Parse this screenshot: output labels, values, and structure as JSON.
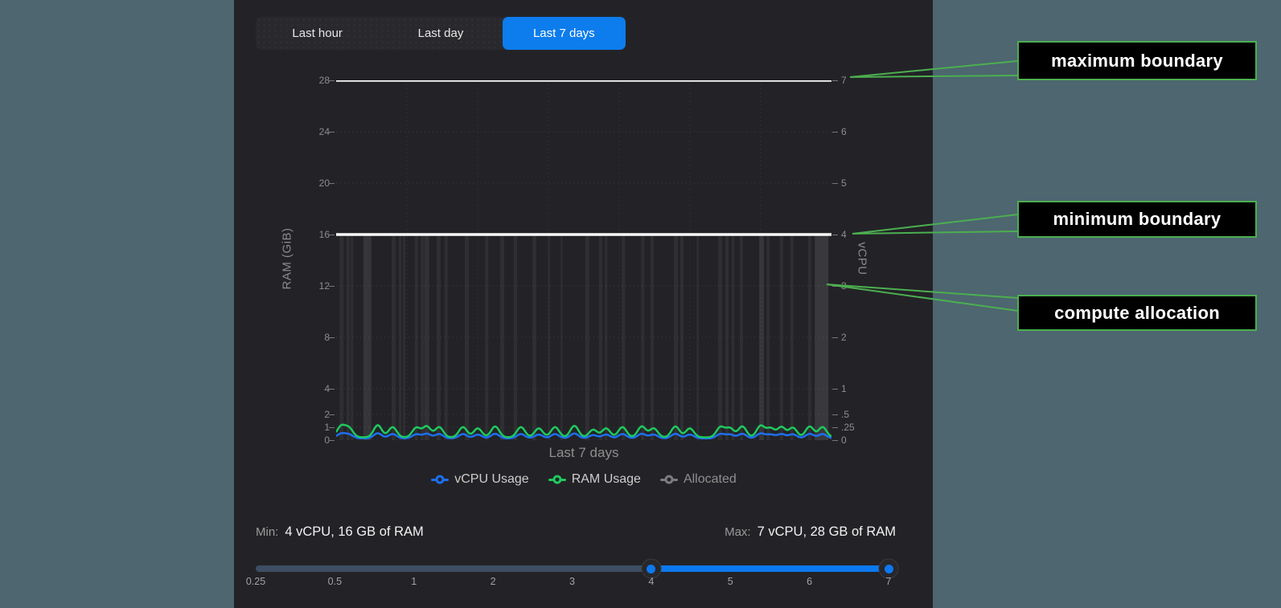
{
  "tabs": {
    "items": [
      {
        "label": "Last hour",
        "active": false
      },
      {
        "label": "Last day",
        "active": false
      },
      {
        "label": "Last 7 days",
        "active": true
      }
    ]
  },
  "chart_data": {
    "type": "line",
    "x_label": "Last 7 days",
    "y_left": {
      "label": "RAM (GiB)",
      "range": [
        0,
        28
      ],
      "ticks": [
        28,
        24,
        20,
        16,
        12,
        8,
        4,
        2,
        1,
        0
      ],
      "tick_labels": [
        "28",
        "24",
        "20",
        "16",
        "12",
        "8",
        "4",
        "2",
        "1",
        "0"
      ]
    },
    "y_right": {
      "label": "vCPU",
      "range": [
        0,
        7
      ],
      "ticks": [
        7,
        6,
        5,
        4,
        3,
        2,
        1,
        0.5,
        0.25,
        0
      ],
      "tick_labels": [
        "7",
        "6",
        "5",
        "4",
        "3",
        "2",
        "1",
        ".5",
        ".25",
        "0"
      ]
    },
    "boundaries": {
      "maximum": {
        "ram_gib": 28,
        "vcpu": 7
      },
      "minimum": {
        "ram_gib": 16,
        "vcpu": 4
      }
    },
    "series": [
      {
        "name": "vCPU Usage",
        "color": "#1e6ff0",
        "axis": "right",
        "baseline_vcpu": 0.035
      },
      {
        "name": "RAM Usage",
        "color": "#1fc95e",
        "axis": "left",
        "baseline_gib": 0.22
      },
      {
        "name": "Allocated",
        "color": "#ffffff",
        "type": "bar",
        "bar_top_gib": 16
      }
    ],
    "ram_bumps": [
      [
        0.01,
        0.85
      ],
      [
        0.026,
        0.7
      ],
      [
        0.084,
        0.95
      ],
      [
        0.114,
        0.8
      ],
      [
        0.162,
        0.75
      ],
      [
        0.183,
        0.85
      ],
      [
        0.208,
        0.8
      ],
      [
        0.256,
        0.8
      ],
      [
        0.286,
        0.7
      ],
      [
        0.321,
        0.85
      ],
      [
        0.373,
        0.8
      ],
      [
        0.409,
        0.7
      ],
      [
        0.442,
        0.8
      ],
      [
        0.481,
        0.9
      ],
      [
        0.519,
        0.6
      ],
      [
        0.545,
        0.7
      ],
      [
        0.578,
        0.8
      ],
      [
        0.617,
        0.85
      ],
      [
        0.641,
        0.7
      ],
      [
        0.685,
        0.85
      ],
      [
        0.714,
        0.7
      ],
      [
        0.776,
        0.8
      ],
      [
        0.795,
        0.7
      ],
      [
        0.82,
        0.85
      ],
      [
        0.857,
        0.9
      ],
      [
        0.877,
        0.7
      ],
      [
        0.899,
        0.8
      ],
      [
        0.922,
        0.75
      ],
      [
        0.956,
        0.85
      ],
      [
        0.982,
        0.8
      ]
    ],
    "allocated_bars": [
      [
        0.011,
        5,
        0.055
      ],
      [
        0.024,
        4,
        0.055
      ],
      [
        0.032,
        3,
        0.055
      ],
      [
        0.063,
        10,
        0.09
      ],
      [
        0.116,
        5,
        0.055
      ],
      [
        0.129,
        3,
        0.055
      ],
      [
        0.137,
        3,
        0.055
      ],
      [
        0.162,
        4,
        0.055
      ],
      [
        0.174,
        4,
        0.055
      ],
      [
        0.183,
        6,
        0.07
      ],
      [
        0.207,
        5,
        0.055
      ],
      [
        0.222,
        4,
        0.055
      ],
      [
        0.264,
        5,
        0.055
      ],
      [
        0.304,
        4,
        0.055
      ],
      [
        0.335,
        5,
        0.055
      ],
      [
        0.362,
        4,
        0.055
      ],
      [
        0.4,
        5,
        0.055
      ],
      [
        0.43,
        3,
        0.045
      ],
      [
        0.455,
        3,
        0.045
      ],
      [
        0.507,
        5,
        0.055
      ],
      [
        0.534,
        4,
        0.055
      ],
      [
        0.545,
        3,
        0.055
      ],
      [
        0.58,
        4,
        0.055
      ],
      [
        0.619,
        4,
        0.055
      ],
      [
        0.638,
        4,
        0.055
      ],
      [
        0.686,
        5,
        0.055
      ],
      [
        0.698,
        4,
        0.055
      ],
      [
        0.73,
        3,
        0.045
      ],
      [
        0.775,
        5,
        0.055
      ],
      [
        0.789,
        4,
        0.055
      ],
      [
        0.801,
        3,
        0.055
      ],
      [
        0.818,
        4,
        0.055
      ],
      [
        0.859,
        6,
        0.09
      ],
      [
        0.872,
        4,
        0.055
      ],
      [
        0.899,
        4,
        0.055
      ],
      [
        0.92,
        4,
        0.055
      ],
      [
        0.956,
        4,
        0.055
      ],
      [
        0.98,
        17,
        0.1
      ]
    ]
  },
  "legend": {
    "items": [
      {
        "label": "vCPU Usage",
        "color": "#1e6ff0",
        "muted": false
      },
      {
        "label": "RAM Usage",
        "color": "#1fc95e",
        "muted": false
      },
      {
        "label": "Allocated",
        "color": "#7d7d80",
        "muted": true
      }
    ]
  },
  "range_summary": {
    "min_label": "Min:",
    "min_value": "4 vCPU, 16 GB of RAM",
    "max_label": "Max:",
    "max_value": "7 vCPU, 28 GB of RAM"
  },
  "slider": {
    "tick_labels": [
      "0.25",
      "0.5",
      "1",
      "2",
      "3",
      "4",
      "5",
      "6",
      "7"
    ],
    "selected_range": [
      4,
      7
    ],
    "handle_positions": [
      0.625,
      1
    ]
  },
  "annotations": [
    {
      "text": "maximum boundary"
    },
    {
      "text": "minimum boundary"
    },
    {
      "text": "compute allocation"
    }
  ],
  "colors": {
    "accent_blue": "#0d7cec",
    "slider_blue": "#0c79f0",
    "usage_green": "#1fc95e",
    "usage_blue": "#1e6ff0",
    "annotation_green": "#4caf50",
    "boundary_white": "#fafafa",
    "panel_bg": "#232327",
    "page_bg": "#4d6670"
  }
}
